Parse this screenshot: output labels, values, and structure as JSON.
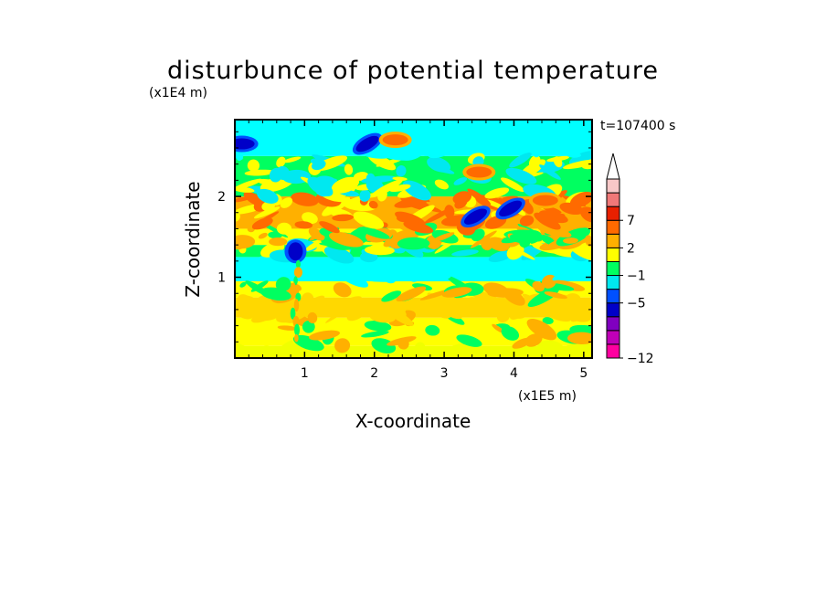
{
  "chart_data": {
    "type": "heatmap",
    "title": "disturbunce of potential temperature",
    "xlabel": "X-coordinate",
    "ylabel": "Z-coordinate",
    "x_unit": "(x1E5 m)",
    "y_unit": "(x1E4 m)",
    "time_label": "t=107400 s",
    "xlim": [
      0,
      5.12
    ],
    "ylim": [
      0,
      2.95
    ],
    "x_ticks": [
      "1",
      "2",
      "3",
      "4",
      "5"
    ],
    "y_ticks": [
      "1",
      "2"
    ],
    "colorbar": {
      "extend": "max",
      "labels": [
        "7",
        "2",
        "−1",
        "−5",
        "−12"
      ],
      "levels": [
        {
          "color": "#ff00a0"
        },
        {
          "color": "#c000b8"
        },
        {
          "color": "#8000c0"
        },
        {
          "color": "#0000c8"
        },
        {
          "color": "#0050ff"
        },
        {
          "color": "#00e8f0"
        },
        {
          "color": "#00ff60"
        },
        {
          "color": "#ffff00"
        },
        {
          "color": "#ffb000"
        },
        {
          "color": "#ff6a00"
        },
        {
          "color": "#e82000"
        },
        {
          "color": "#f07878"
        },
        {
          "color": "#f8c8c8"
        }
      ]
    },
    "bands": [
      {
        "z": [
          0.0,
          0.15
        ],
        "color": "#f0ff00",
        "field": "dominant"
      },
      {
        "z": [
          0.15,
          0.5
        ],
        "color": "#ffff00",
        "field": "dominant"
      },
      {
        "z": [
          0.5,
          0.75
        ],
        "color": "#ffd800",
        "field": "patchy"
      },
      {
        "z": [
          0.75,
          0.95
        ],
        "color": "#ffff00",
        "field": "dominant"
      },
      {
        "z": [
          0.95,
          1.25
        ],
        "color": "#00ffff",
        "field": "dominant"
      },
      {
        "z": [
          1.25,
          1.4
        ],
        "color": "#00ff60",
        "field": "dominant"
      },
      {
        "z": [
          1.4,
          1.6
        ],
        "color": "#ffff00",
        "field": "patchy"
      },
      {
        "z": [
          1.6,
          2.0
        ],
        "color": "#ffb000",
        "field": "patchy"
      },
      {
        "z": [
          2.0,
          2.5
        ],
        "color": "#00ff60",
        "field": "patchy"
      },
      {
        "z": [
          2.5,
          2.95
        ],
        "color": "#00ffff",
        "field": "patchy"
      }
    ],
    "features": [
      {
        "name": "cold-core",
        "x": 0.87,
        "z": 1.32,
        "color": "#0000c8"
      },
      {
        "name": "cold-patch",
        "x": 0.1,
        "z": 2.65,
        "color": "#0000c8"
      },
      {
        "name": "cold-streak",
        "x": 1.9,
        "z": 2.65,
        "color": "#0000c8"
      },
      {
        "name": "cold-streak",
        "x": 3.45,
        "z": 1.75,
        "color": "#0000c8"
      },
      {
        "name": "cold-streak",
        "x": 3.95,
        "z": 1.85,
        "color": "#0000c8"
      },
      {
        "name": "warm-patch",
        "x": 2.3,
        "z": 2.7,
        "color": "#ff6a00"
      },
      {
        "name": "warm-patch",
        "x": 3.5,
        "z": 2.3,
        "color": "#ff6a00"
      },
      {
        "name": "warm-patch",
        "x": 4.45,
        "z": 1.95,
        "color": "#ff6a00"
      }
    ]
  }
}
